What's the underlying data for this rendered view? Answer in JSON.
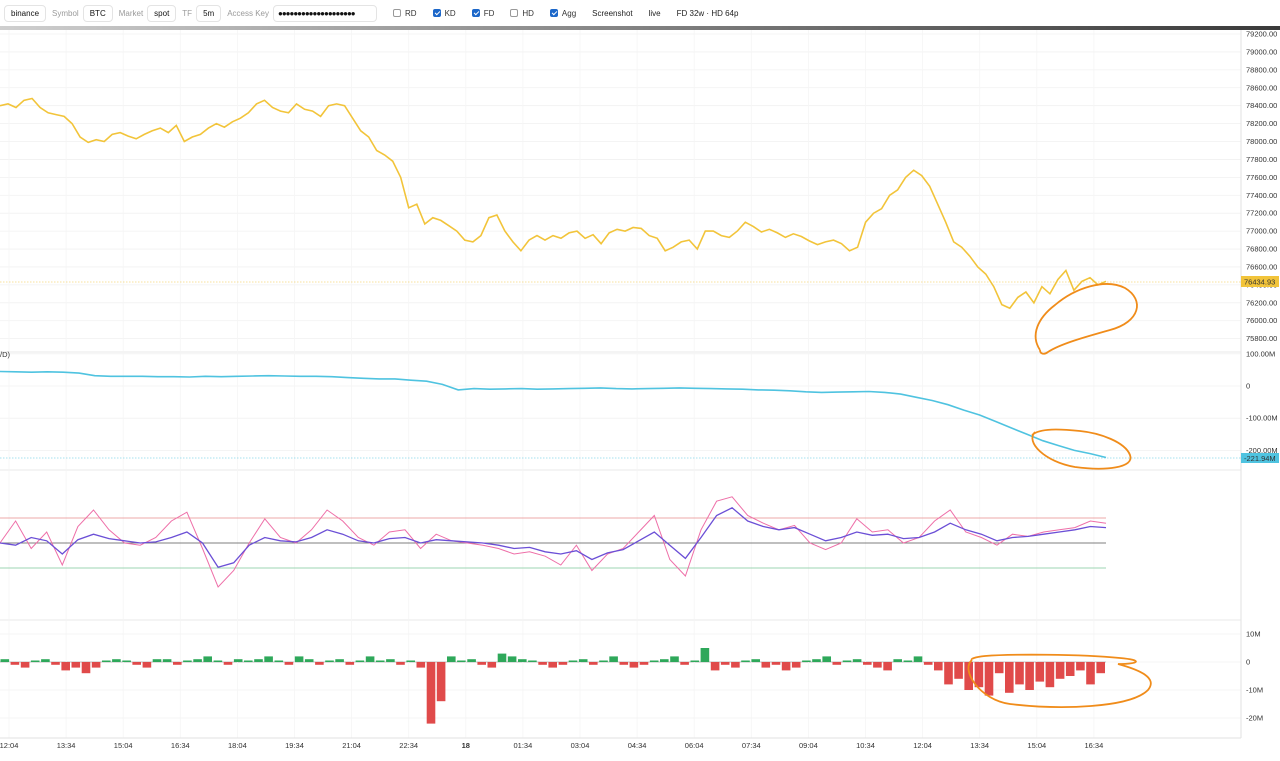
{
  "toolbar": {
    "exchange": "binance",
    "symbol_label": "Symbol",
    "symbol": "BTC",
    "market_label": "Market",
    "market": "spot",
    "tf_label": "TF",
    "tf": "5m",
    "access_key_label": "Access Key",
    "access_key_masked": "●●●●●●●●●●●●●●●●●●●●",
    "checks": [
      {
        "label": "RD",
        "checked": false
      },
      {
        "label": "KD",
        "checked": true
      },
      {
        "label": "FD",
        "checked": true
      },
      {
        "label": "HD",
        "checked": false
      },
      {
        "label": "Agg",
        "checked": true
      }
    ],
    "screenshot_label": "Screenshot",
    "live_label": "live",
    "fd_info": "FD 32w · HD 64p"
  },
  "price_panel": {
    "current_price_label": "76434.93",
    "accent": "#f2c43a",
    "y_ticks": [
      "79200.00",
      "79000.00",
      "78800.00",
      "78600.00",
      "78400.00",
      "78200.00",
      "78000.00",
      "77800.00",
      "77600.00",
      "77400.00",
      "77200.00",
      "77000.00",
      "76800.00",
      "76600.00",
      "76400.00",
      "76200.00",
      "76000.00",
      "75800.00"
    ]
  },
  "cvd_panel": {
    "label": "/D)",
    "current_label": "-221.94M",
    "accent": "#4fc3e0",
    "y_ticks": [
      "100.00M",
      "0",
      "-100.00M",
      "-200.00M"
    ]
  },
  "volume_panel": {
    "y_ticks": [
      "10M",
      "0",
      "-10M",
      "-20M"
    ],
    "up_color": "#2ea85a",
    "down_color": "#e04a4a"
  },
  "x_axis": [
    "12:04",
    "13:34",
    "15:04",
    "16:34",
    "18:04",
    "19:34",
    "21:04",
    "22:34",
    "18",
    "01:34",
    "03:04",
    "04:34",
    "06:04",
    "07:34",
    "09:04",
    "10:34",
    "12:04",
    "13:34",
    "15:04",
    "16:34"
  ],
  "chart_data": [
    {
      "type": "line",
      "title": "",
      "series": [
        {
          "values": [
            78400,
            78420,
            78380,
            78460,
            78480,
            78380,
            78320,
            78300,
            78280,
            78200,
            78050,
            77990,
            78020,
            78000,
            78080,
            78100,
            78060,
            78030,
            78080,
            78120,
            78150,
            78100,
            78180,
            78000,
            78050,
            78080,
            78150,
            78200,
            78160,
            78220,
            78260,
            78320,
            78420,
            78460,
            78380,
            78340,
            78320,
            78420,
            78360,
            78340,
            78280,
            78400,
            78420,
            78400,
            78260,
            78120,
            78050,
            77900,
            77850,
            77780,
            77600,
            77260,
            77300,
            77080,
            77150,
            77120,
            77060,
            77000,
            76900,
            76880,
            76950,
            77150,
            77180,
            77000,
            76880,
            76780,
            76900,
            76950,
            76900,
            76950,
            76920,
            76980,
            77000,
            76920,
            76960,
            76860,
            76980,
            77020,
            77000,
            77040,
            77030,
            76950,
            76920,
            76780,
            76820,
            76880,
            76900,
            76800,
            77000,
            77000,
            76950,
            76930,
            77000,
            77100,
            77050,
            76990,
            77020,
            76980,
            76930,
            76970,
            76940,
            76890,
            76850,
            76880,
            76900,
            76860,
            76780,
            76820,
            77100,
            77200,
            77250,
            77400,
            77460,
            77600,
            77680,
            77620,
            77500,
            77300,
            77100,
            76880,
            76820,
            76720,
            76600,
            76520,
            76380,
            76180,
            76140,
            76260,
            76320,
            76200,
            76380,
            76300,
            76460,
            76560,
            76340,
            76440,
            76480,
            76400,
            76440
          ]
        }
      ]
    },
    {
      "type": "line",
      "series": [
        {
          "values": [
            45,
            44,
            43,
            44,
            43,
            40,
            32,
            30,
            30,
            30,
            29,
            29,
            28,
            30,
            29,
            30,
            31,
            32,
            31,
            30,
            30,
            29,
            26,
            24,
            22,
            22,
            18,
            15,
            5,
            -12,
            -8,
            -10,
            -9,
            -8,
            -10,
            -9,
            -8,
            -7,
            -6,
            -8,
            -9,
            -8,
            -7,
            -6,
            -7,
            -8,
            -9,
            -10,
            -12,
            -13,
            -15,
            -18,
            -20,
            -19,
            -18,
            -17,
            -20,
            -25,
            -35,
            -45,
            -58,
            -75,
            -90,
            -110,
            -130,
            -150,
            -170,
            -185,
            -200,
            -210,
            -222
          ]
        }
      ]
    },
    {
      "type": "line",
      "title": "",
      "series": [
        {
          "values": [
            50,
            48,
            55,
            52,
            40,
            53,
            58,
            54,
            52,
            50,
            51,
            55,
            60,
            50,
            28,
            32,
            48,
            55,
            52,
            51,
            55,
            62,
            58,
            52,
            50,
            54,
            55,
            50,
            53,
            52,
            51,
            50,
            48,
            45,
            46,
            42,
            40,
            43,
            35,
            41,
            44,
            52,
            60,
            48,
            36,
            55,
            75,
            82,
            70,
            65,
            62,
            64,
            58,
            52,
            55,
            60,
            57,
            58,
            54,
            55,
            60,
            68,
            62,
            58,
            52,
            55,
            56,
            58,
            60,
            62,
            65,
            64
          ]
        },
        {
          "values": [
            50,
            70,
            45,
            60,
            30,
            65,
            80,
            62,
            50,
            48,
            55,
            70,
            78,
            45,
            10,
            25,
            50,
            72,
            55,
            50,
            62,
            80,
            70,
            55,
            48,
            60,
            62,
            45,
            58,
            52,
            50,
            48,
            45,
            40,
            42,
            38,
            30,
            48,
            25,
            40,
            45,
            60,
            75,
            35,
            20,
            62,
            88,
            92,
            75,
            68,
            62,
            66,
            50,
            44,
            50,
            72,
            60,
            62,
            50,
            55,
            70,
            80,
            60,
            55,
            48,
            58,
            56,
            60,
            62,
            64,
            70,
            68
          ]
        }
      ]
    },
    {
      "type": "bar",
      "series": [
        {
          "values": [
            1,
            -1,
            -2,
            0,
            1,
            -1,
            -3,
            -2,
            -4,
            -2,
            0,
            1,
            0,
            -1,
            -2,
            1,
            1,
            -1,
            0,
            1,
            2,
            0,
            -1,
            1,
            0,
            1,
            2,
            0,
            -1,
            2,
            1,
            -1,
            0,
            1,
            -1,
            0,
            2,
            0,
            1,
            -1,
            0,
            -2,
            -22,
            -14,
            2,
            0,
            1,
            -1,
            -2,
            3,
            2,
            1,
            0,
            -1,
            -2,
            -1,
            0,
            1,
            -1,
            0,
            2,
            -1,
            -2,
            -1,
            0,
            1,
            2,
            -1,
            0,
            5,
            -3,
            -1,
            -2,
            0,
            1,
            -2,
            -1,
            -3,
            -2,
            0,
            1,
            2,
            -1,
            0,
            1,
            -1,
            -2,
            -3,
            1,
            0,
            2,
            -1,
            -3,
            -8,
            -6,
            -10,
            -9,
            -12,
            -4,
            -11,
            -8,
            -10,
            -7,
            -9,
            -6,
            -5,
            -3,
            -8,
            -4
          ]
        }
      ]
    }
  ]
}
